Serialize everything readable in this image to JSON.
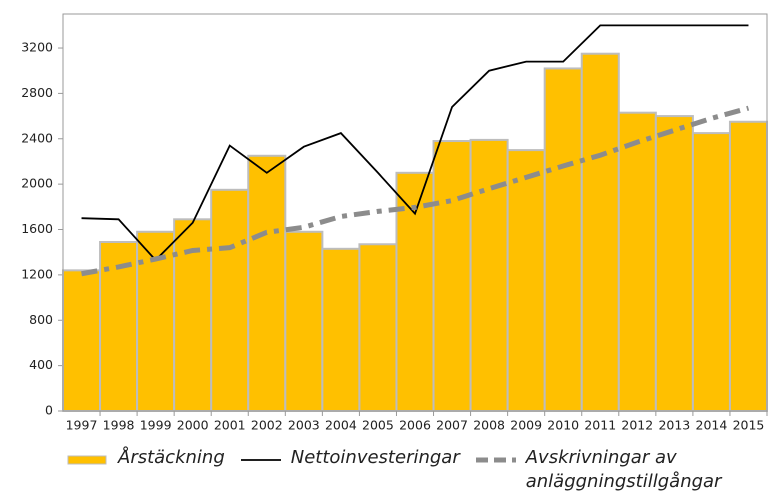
{
  "chart_data": {
    "type": "bar",
    "categories": [
      "1997",
      "1998",
      "1999",
      "2000",
      "2001",
      "2002",
      "2003",
      "2004",
      "2005",
      "2006",
      "2007",
      "2008",
      "2009",
      "2010",
      "2011",
      "2012",
      "2013",
      "2014",
      "2015"
    ],
    "series": [
      {
        "name": "Årstäckning",
        "type": "bar",
        "color": "#ffc000",
        "values": [
          1240,
          1490,
          1580,
          1690,
          1950,
          2250,
          1580,
          1430,
          1470,
          2100,
          2380,
          2390,
          2300,
          3020,
          3150,
          2630,
          2600,
          2450,
          2550
        ]
      },
      {
        "name": "Nettoinvesteringar",
        "type": "line",
        "color": "#000000",
        "values": [
          1700,
          1690,
          1330,
          1660,
          2340,
          2100,
          2330,
          2450,
          2100,
          1740,
          2680,
          3000,
          3080,
          3080,
          3400,
          3400,
          3400,
          3400,
          3400
        ]
      },
      {
        "name": "Avskrivningar av anläggningstillgångar",
        "type": "line",
        "dashed": true,
        "color": "#8c8c8c",
        "values": [
          1210,
          1270,
          1340,
          1415,
          1440,
          1575,
          1620,
          1715,
          1760,
          1795,
          1855,
          1960,
          2060,
          2160,
          2255,
          2370,
          2475,
          2580,
          2670
        ]
      }
    ],
    "ylim": [
      0,
      3500
    ],
    "yticks": [
      0,
      400,
      800,
      1200,
      1600,
      2000,
      2400,
      2800,
      3200
    ],
    "grid": false,
    "legend": "bottom"
  }
}
